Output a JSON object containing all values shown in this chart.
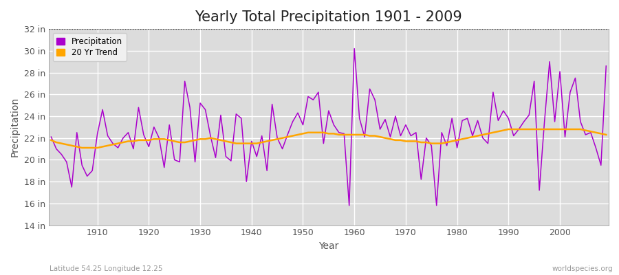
{
  "title": "Yearly Total Precipitation 1901 - 2009",
  "xlabel": "Year",
  "ylabel": "Precipitation",
  "subtitle_left": "Latitude 54.25 Longitude 12.25",
  "subtitle_right": "worldspecies.org",
  "years": [
    1901,
    1902,
    1903,
    1904,
    1905,
    1906,
    1907,
    1908,
    1909,
    1910,
    1911,
    1912,
    1913,
    1914,
    1915,
    1916,
    1917,
    1918,
    1919,
    1920,
    1921,
    1922,
    1923,
    1924,
    1925,
    1926,
    1927,
    1928,
    1929,
    1930,
    1931,
    1932,
    1933,
    1934,
    1935,
    1936,
    1937,
    1938,
    1939,
    1940,
    1941,
    1942,
    1943,
    1944,
    1945,
    1946,
    1947,
    1948,
    1949,
    1950,
    1951,
    1952,
    1953,
    1954,
    1955,
    1956,
    1957,
    1958,
    1959,
    1960,
    1961,
    1962,
    1963,
    1964,
    1965,
    1966,
    1967,
    1968,
    1969,
    1970,
    1971,
    1972,
    1973,
    1974,
    1975,
    1976,
    1977,
    1978,
    1979,
    1980,
    1981,
    1982,
    1983,
    1984,
    1985,
    1986,
    1987,
    1988,
    1989,
    1990,
    1991,
    1992,
    1993,
    1994,
    1995,
    1996,
    1997,
    1998,
    1999,
    2000,
    2001,
    2002,
    2003,
    2004,
    2005,
    2006,
    2007,
    2008,
    2009
  ],
  "precip": [
    22.1,
    21.0,
    20.5,
    19.8,
    17.5,
    22.5,
    19.5,
    18.5,
    19.0,
    22.4,
    24.6,
    22.2,
    21.5,
    21.1,
    22.0,
    22.5,
    21.0,
    24.8,
    22.3,
    21.2,
    23.0,
    22.0,
    19.3,
    23.2,
    20.0,
    19.8,
    27.2,
    24.8,
    19.8,
    25.2,
    24.6,
    22.2,
    20.2,
    24.1,
    20.3,
    19.9,
    24.2,
    23.8,
    18.0,
    21.7,
    20.3,
    22.2,
    19.0,
    25.1,
    22.0,
    21.0,
    22.3,
    23.5,
    24.3,
    23.2,
    25.8,
    25.5,
    26.2,
    21.5,
    24.5,
    23.2,
    22.5,
    22.4,
    15.8,
    30.2,
    23.8,
    22.1,
    26.5,
    25.5,
    22.8,
    23.7,
    22.1,
    24.0,
    22.2,
    23.2,
    22.2,
    22.5,
    18.2,
    22.0,
    21.3,
    15.8,
    22.5,
    21.3,
    23.8,
    21.1,
    23.6,
    23.8,
    22.2,
    23.6,
    22.0,
    21.5,
    26.2,
    23.6,
    24.5,
    23.8,
    22.2,
    22.8,
    23.5,
    24.1,
    27.2,
    17.2,
    23.5,
    29.0,
    23.5,
    28.1,
    22.1,
    26.2,
    27.5,
    23.5,
    22.3,
    22.5,
    21.1,
    19.5,
    28.6
  ],
  "trend": [
    21.8,
    21.6,
    21.5,
    21.4,
    21.3,
    21.2,
    21.1,
    21.1,
    21.1,
    21.1,
    21.2,
    21.3,
    21.4,
    21.5,
    21.6,
    21.7,
    21.7,
    21.8,
    21.8,
    21.8,
    21.9,
    21.9,
    21.9,
    21.8,
    21.7,
    21.6,
    21.6,
    21.7,
    21.8,
    21.9,
    21.9,
    22.0,
    21.9,
    21.8,
    21.7,
    21.6,
    21.5,
    21.5,
    21.5,
    21.5,
    21.5,
    21.6,
    21.7,
    21.8,
    21.9,
    22.0,
    22.1,
    22.2,
    22.3,
    22.4,
    22.5,
    22.5,
    22.5,
    22.5,
    22.4,
    22.4,
    22.3,
    22.3,
    22.3,
    22.3,
    22.3,
    22.3,
    22.2,
    22.2,
    22.1,
    22.0,
    21.9,
    21.8,
    21.8,
    21.7,
    21.7,
    21.7,
    21.6,
    21.6,
    21.5,
    21.5,
    21.5,
    21.6,
    21.7,
    21.8,
    21.9,
    22.0,
    22.1,
    22.2,
    22.3,
    22.4,
    22.5,
    22.6,
    22.7,
    22.8,
    22.8,
    22.8,
    22.8,
    22.8,
    22.8,
    22.8,
    22.8,
    22.8,
    22.8,
    22.8,
    22.8,
    22.8,
    22.8,
    22.8,
    22.7,
    22.6,
    22.5,
    22.4,
    22.3
  ],
  "precip_color": "#AA00CC",
  "trend_color": "#FFA500",
  "fig_bg_color": "#FFFFFF",
  "plot_bg_color": "#DCDCDC",
  "ylim_min": 14,
  "ylim_max": 32,
  "ytick_step": 2,
  "title_fontsize": 15,
  "axis_label_fontsize": 10,
  "tick_fontsize": 9,
  "grid_color": "#FFFFFF",
  "top_line_color": "#333333"
}
